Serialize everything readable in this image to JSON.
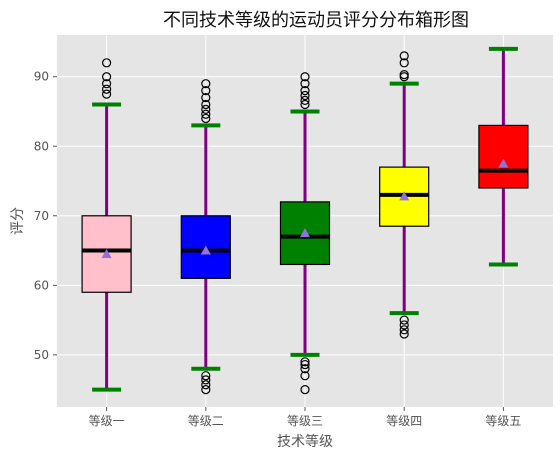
{
  "chart_data": {
    "type": "box",
    "title": "不同技术等级的运动员评分分布箱形图",
    "xlabel": "技术等级",
    "ylabel": "评分",
    "ylim": [
      42.5,
      96
    ],
    "yticks": [
      50,
      60,
      70,
      80,
      90
    ],
    "grid": true,
    "categories": [
      "等级一",
      "等级二",
      "等级三",
      "等级四",
      "等级五"
    ],
    "boxes": [
      {
        "category": "等级一",
        "color": "#FFC0CB",
        "whisker_low": 45,
        "q1": 59,
        "median": 65,
        "q3": 70,
        "whisker_high": 86,
        "mean": 64.5,
        "outliers": [
          87.5,
          88.2,
          89,
          90,
          92
        ]
      },
      {
        "category": "等级二",
        "color": "#0000FF",
        "whisker_low": 48,
        "q1": 61,
        "median": 65,
        "q3": 70,
        "whisker_high": 83,
        "mean": 65,
        "outliers": [
          84,
          84.6,
          85.3,
          86,
          87,
          88,
          89,
          45,
          45.7,
          46.4,
          47
        ]
      },
      {
        "category": "等级三",
        "color": "#008000",
        "whisker_low": 50,
        "q1": 63,
        "median": 67,
        "q3": 72,
        "whisker_high": 85,
        "mean": 67.5,
        "outliers": [
          86,
          86.6,
          87.3,
          88,
          89,
          90,
          45,
          47,
          48,
          48.6,
          49
        ]
      },
      {
        "category": "等级四",
        "color": "#FFFF00",
        "whisker_low": 56,
        "q1": 68.5,
        "median": 73,
        "q3": 77,
        "whisker_high": 89,
        "mean": 72.8,
        "outliers": [
          90,
          90.3,
          92,
          93,
          53,
          53.6,
          54.3,
          55
        ]
      },
      {
        "category": "等级五",
        "color": "#FF0000",
        "whisker_low": 63,
        "q1": 74,
        "median": 76.5,
        "q3": 83,
        "whisker_high": 94,
        "mean": 77.5,
        "outliers": []
      }
    ],
    "styles": {
      "whisker_color": "#800080",
      "cap_color": "#008000",
      "median_color": "#000000",
      "mean_marker_color": "#9370DB",
      "background": "#E5E5E5",
      "grid_color": "#FFFFFF"
    }
  }
}
